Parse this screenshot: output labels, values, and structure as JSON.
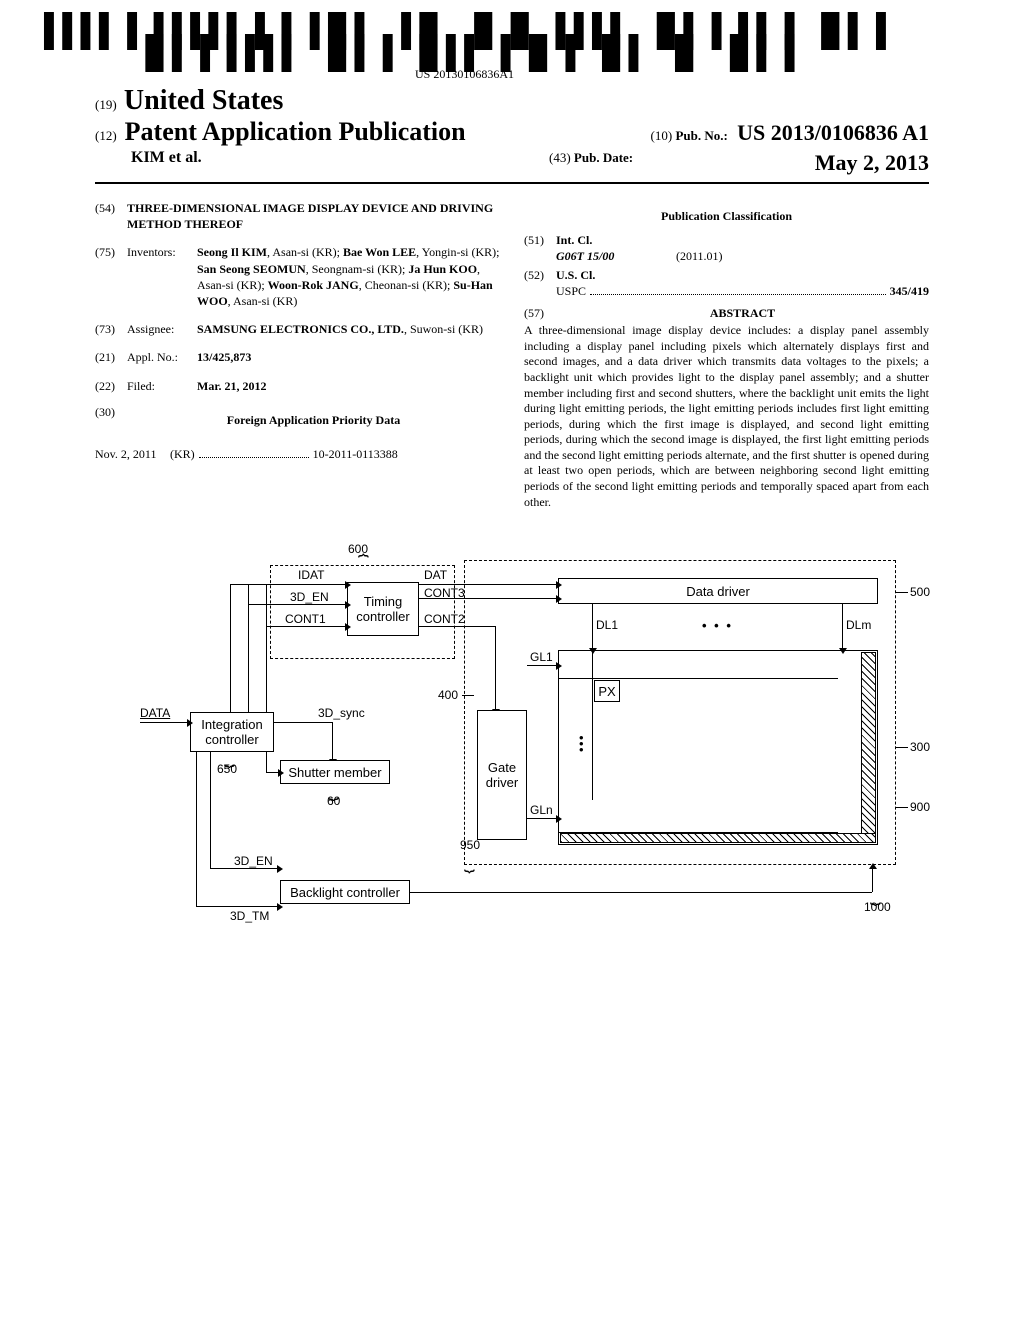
{
  "barcode": {
    "code_text": "US 20130106836A1"
  },
  "header": {
    "line1_num": "(19)",
    "line1_title": "United States",
    "line2_num": "(12)",
    "line2_title": "Patent Application Publication",
    "pub_no_num": "(10)",
    "pub_no_label": "Pub. No.:",
    "pub_no_value": "US 2013/0106836 A1",
    "authors": "KIM et al.",
    "pub_date_num": "(43)",
    "pub_date_label": "Pub. Date:",
    "pub_date_value": "May 2, 2013"
  },
  "left_col": {
    "f54_num": "(54)",
    "f54_value": "THREE-DIMENSIONAL IMAGE DISPLAY DEVICE AND DRIVING METHOD THEREOF",
    "f75_num": "(75)",
    "f75_label": "Inventors:",
    "f75_value_html": "<b>Seong Il KIM</b>, Asan-si (KR); <b>Bae Won LEE</b>, Yongin-si (KR); <b>San Seong SEOMUN</b>, Seongnam-si (KR); <b>Ja Hun KOO</b>, Asan-si (KR); <b>Woon-Rok JANG</b>, Cheonan-si (KR); <b>Su-Han WOO</b>, Asan-si (KR)",
    "f73_num": "(73)",
    "f73_label": "Assignee:",
    "f73_value_html": "<b>SAMSUNG ELECTRONICS CO., LTD.</b>, Suwon-si (KR)",
    "f21_num": "(21)",
    "f21_label": "Appl. No.:",
    "f21_value": "13/425,873",
    "f22_num": "(22)",
    "f22_label": "Filed:",
    "f22_value": "Mar. 21, 2012",
    "f30_num": "(30)",
    "f30_title": "Foreign Application Priority Data",
    "priority_date": "Nov. 2, 2011",
    "priority_country": "(KR)",
    "priority_number": "10-2011-0113388"
  },
  "right_col": {
    "pub_class_title": "Publication Classification",
    "f51_num": "(51)",
    "f51_label": "Int. Cl.",
    "intcl_code": "G06T 15/00",
    "intcl_date": "(2011.01)",
    "f52_num": "(52)",
    "f52_label": "U.S. Cl.",
    "uspc_label": "USPC",
    "uspc_value": "345/419",
    "f57_num": "(57)",
    "abstract_label": "ABSTRACT",
    "abstract_text": "A three-dimensional image display device includes: a display panel assembly including a display panel including pixels which alternately displays first and second images, and a data driver which transmits data voltages to the pixels; a backlight unit which provides light to the display panel assembly; and a shutter member including first and second shutters, where the backlight unit emits the light during light emitting periods, the light emitting periods includes first light emitting periods, during which the first image is displayed, and second light emitting periods, during which the second image is displayed, the first light emitting periods and the second light emitting periods alternate, and the first shutter is opened during at least two open periods, which are between neighboring second light emitting periods of the second light emitting periods and temporally spaced apart from each other."
  },
  "diagram": {
    "labels": {
      "n600": "600",
      "n500": "500",
      "n400": "400",
      "n300": "300",
      "n900": "900",
      "n1000": "1000",
      "n950": "950",
      "n650": "650",
      "n60": "60",
      "IDAT": "IDAT",
      "DAT": "DAT",
      "EN3D": "3D_EN",
      "CONT1": "CONT1",
      "CONT2": "CONT2",
      "CONT3": "CONT3",
      "DL1": "DL1",
      "DLm": "DLm",
      "GL1": "GL1",
      "GLn": "GLn",
      "PX": "PX",
      "DATA": "DATA",
      "sync3d": "3D_sync",
      "TM3D": "3D_TM",
      "timing": "Timing controller",
      "datadriver": "Data driver",
      "integration": "Integration controller",
      "shutter": "Shutter member",
      "gate": "Gate driver",
      "backlight": "Backlight controller",
      "dots": "• • •"
    }
  }
}
